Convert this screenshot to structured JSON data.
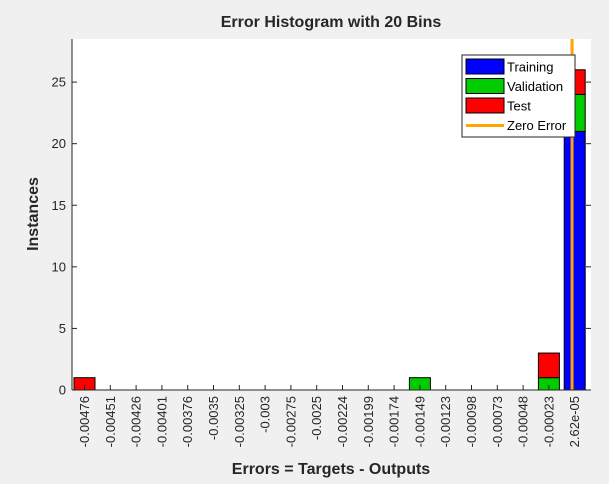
{
  "chart_data": {
    "type": "bar",
    "stacked": true,
    "title": "Error Histogram with 20 Bins",
    "xlabel": "Errors = Targets - Outputs",
    "ylabel": "Instances",
    "ylim": [
      0,
      28.5
    ],
    "yticks": [
      0,
      5,
      10,
      15,
      20,
      25
    ],
    "categories": [
      "-0.00476",
      "-0.00451",
      "-0.00426",
      "-0.00401",
      "-0.00376",
      "-0.0035",
      "-0.00325",
      "-0.003",
      "-0.00275",
      "-0.0025",
      "-0.00224",
      "-0.00199",
      "-0.00174",
      "-0.00149",
      "-0.00123",
      "-0.00098",
      "-0.00073",
      "-0.00048",
      "-0.00023",
      "2.62e-05"
    ],
    "series": [
      {
        "name": "Training",
        "color": "#0000ff",
        "values": [
          0,
          0,
          0,
          0,
          0,
          0,
          0,
          0,
          0,
          0,
          0,
          0,
          0,
          0,
          0,
          0,
          0,
          0,
          0,
          21
        ]
      },
      {
        "name": "Validation",
        "color": "#00cc00",
        "values": [
          0,
          0,
          0,
          0,
          0,
          0,
          0,
          0,
          0,
          0,
          0,
          0,
          0,
          1,
          0,
          0,
          0,
          0,
          1,
          3
        ]
      },
      {
        "name": "Test",
        "color": "#ff0000",
        "values": [
          1,
          0,
          0,
          0,
          0,
          0,
          0,
          0,
          0,
          0,
          0,
          0,
          0,
          0,
          0,
          0,
          0,
          0,
          2,
          2
        ]
      }
    ],
    "zero_error": {
      "name": "Zero Error",
      "color": "#ffa500",
      "x": 0
    },
    "grid": false,
    "legend_position": "top-right"
  }
}
